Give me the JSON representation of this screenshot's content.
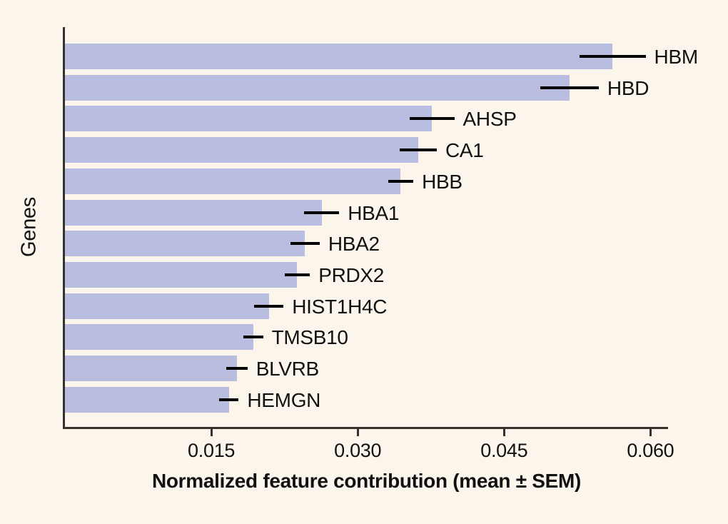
{
  "figure": {
    "y_axis_label": "Genes",
    "x_axis_label": "Normalized feature contribution (mean ± SEM)"
  },
  "colors": {
    "background": "#fcf5eb",
    "bar": "#b9bee1",
    "axis": "#35322e",
    "text": "#111111",
    "error_bar": "#000000"
  },
  "chart_data": {
    "type": "bar",
    "orientation": "horizontal",
    "title": "",
    "xlabel": "Normalized feature contribution (mean ± SEM)",
    "ylabel": "Genes",
    "grid": false,
    "legend": "none",
    "xlim": [
      0,
      0.0618
    ],
    "xticks": [
      0.015,
      0.03,
      0.045,
      0.06
    ],
    "xtick_labels": [
      "0.015",
      "0.030",
      "0.045",
      "0.060"
    ],
    "categories": [
      "HBM",
      "HBD",
      "AHSP",
      "CA1",
      "HBB",
      "HBA1",
      "HBA2",
      "PRDX2",
      "HIST1H4C",
      "TMSB10",
      "BLVRB",
      "HEMGN"
    ],
    "values": [
      0.0561,
      0.0517,
      0.0376,
      0.0362,
      0.0344,
      0.0263,
      0.0246,
      0.0238,
      0.0209,
      0.0193,
      0.0176,
      0.0168
    ],
    "sem": [
      0.0034,
      0.003,
      0.0023,
      0.0019,
      0.0013,
      0.0018,
      0.0015,
      0.0013,
      0.0015,
      0.001,
      0.0011,
      0.001
    ]
  }
}
